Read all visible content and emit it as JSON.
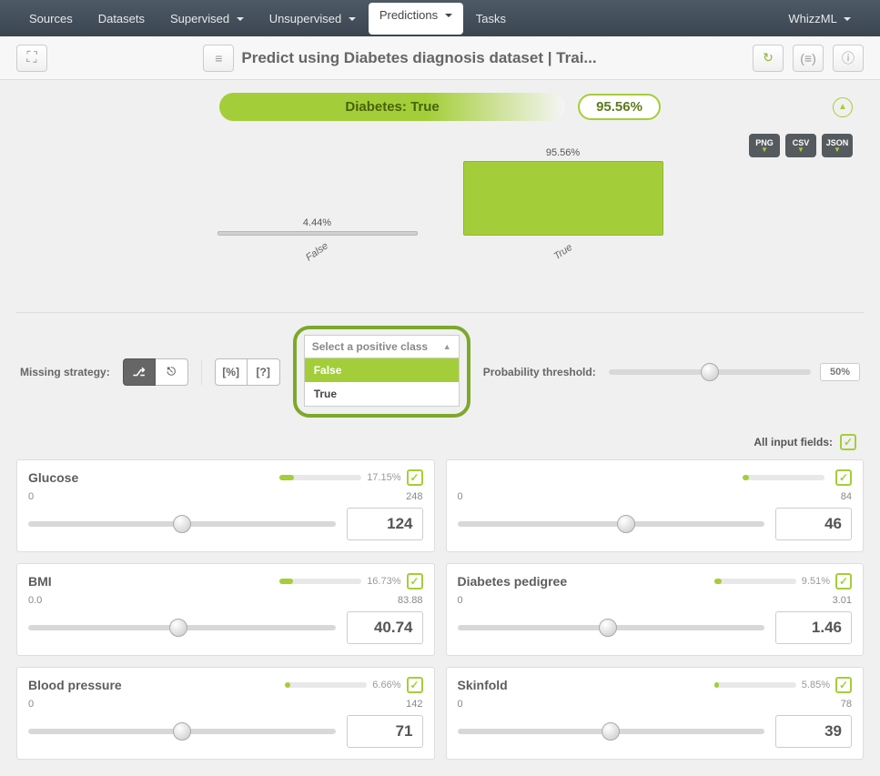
{
  "nav": {
    "items": [
      "Sources",
      "Datasets",
      "Supervised",
      "Unsupervised",
      "Predictions",
      "Tasks"
    ],
    "dropdown_flags": [
      false,
      false,
      true,
      true,
      true,
      false
    ],
    "active_index": 4,
    "right_label": "WhizzML"
  },
  "header": {
    "title": "Predict using Diabetes diagnosis dataset | Trai..."
  },
  "prediction": {
    "label": "Diabetes: True",
    "confidence": "95.56%"
  },
  "export_buttons": [
    "PNG",
    "CSV",
    "JSON"
  ],
  "chart": {
    "type": "bar",
    "categories": [
      "False",
      "True"
    ],
    "values_pct": [
      "4.44%",
      "95.56%"
    ],
    "heights": [
      5,
      82
    ],
    "colors": [
      "#d0d0d0",
      "#a4ce39"
    ]
  },
  "controls": {
    "missing_label": "Missing strategy:",
    "threshold_label": "Probability threshold:",
    "threshold_value": "50%",
    "threshold_knob_pct": 50,
    "dropdown_placeholder": "Select a positive class",
    "dropdown_options": [
      "False",
      "True"
    ],
    "dropdown_selected_index": 0,
    "all_fields_label": "All input fields:"
  },
  "fields": [
    {
      "name": "Glucose",
      "min": "0",
      "max": "248",
      "value": "124",
      "importance": "17.15%",
      "imp_fill": 17.15,
      "knob_pct": 50
    },
    {
      "name": "",
      "min": "0",
      "max": "84",
      "value": "46",
      "importance": "",
      "imp_fill": 8,
      "knob_pct": 55
    },
    {
      "name": "BMI",
      "min": "0.0",
      "max": "83.88",
      "value": "40.74",
      "importance": "16.73%",
      "imp_fill": 16.73,
      "knob_pct": 49
    },
    {
      "name": "Diabetes pedigree",
      "min": "0",
      "max": "3.01",
      "value": "1.46",
      "importance": "9.51%",
      "imp_fill": 9.51,
      "knob_pct": 49
    },
    {
      "name": "Blood pressure",
      "min": "0",
      "max": "142",
      "value": "71",
      "importance": "6.66%",
      "imp_fill": 6.66,
      "knob_pct": 50
    },
    {
      "name": "Skinfold",
      "min": "0",
      "max": "78",
      "value": "39",
      "importance": "5.85%",
      "imp_fill": 5.85,
      "knob_pct": 50
    }
  ],
  "colors": {
    "accent": "#a4ce39",
    "navbar": "#3a4550"
  }
}
